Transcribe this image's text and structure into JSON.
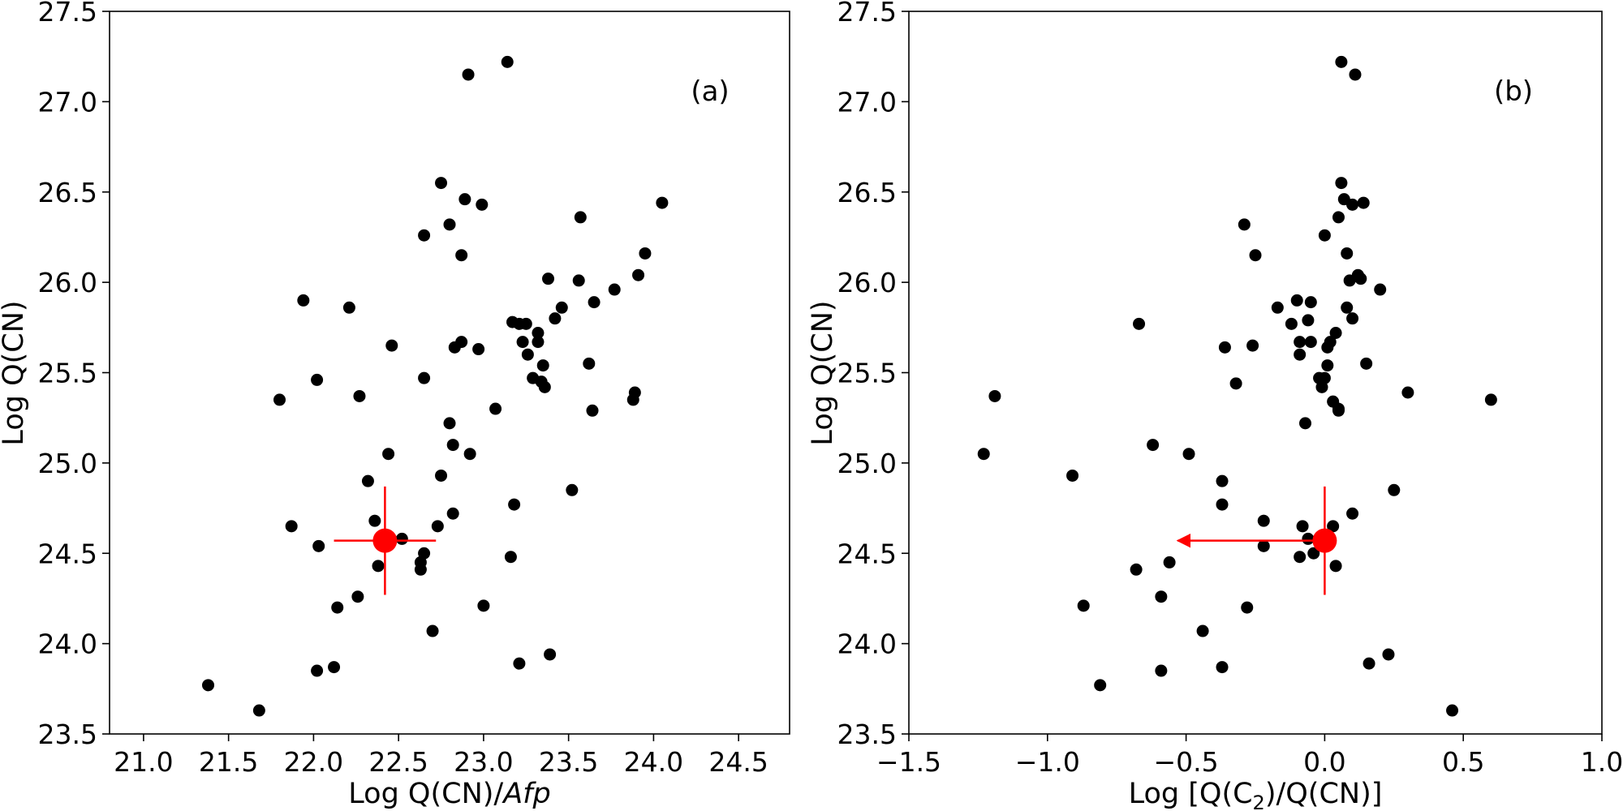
{
  "chart_data": [
    {
      "type": "scatter",
      "panel_label": "(a)",
      "xlabel": "Log Q(CN)/",
      "xlabel_italic": "Afp",
      "ylabel": "Log Q(CN)",
      "xlim": [
        20.8,
        24.8
      ],
      "ylim": [
        23.5,
        27.5
      ],
      "xticks": [
        "21.0",
        "21.5",
        "22.0",
        "22.5",
        "23.0",
        "23.5",
        "24.0",
        "24.5"
      ],
      "yticks": [
        "23.5",
        "24.0",
        "24.5",
        "25.0",
        "25.5",
        "26.0",
        "26.5",
        "27.0",
        "27.5"
      ],
      "grid": false,
      "legend": false,
      "point_color": "#000000",
      "highlight_color": "#ff0000",
      "points": [
        [
          21.38,
          23.77
        ],
        [
          21.68,
          23.63
        ],
        [
          21.8,
          25.35
        ],
        [
          21.87,
          24.65
        ],
        [
          21.94,
          25.9
        ],
        [
          22.02,
          25.46
        ],
        [
          22.03,
          24.54
        ],
        [
          22.02,
          23.85
        ],
        [
          22.12,
          23.87
        ],
        [
          22.14,
          24.2
        ],
        [
          22.21,
          25.86
        ],
        [
          22.26,
          24.26
        ],
        [
          22.27,
          25.37
        ],
        [
          22.32,
          24.9
        ],
        [
          22.36,
          24.68
        ],
        [
          22.38,
          24.43
        ],
        [
          22.44,
          25.05
        ],
        [
          22.46,
          25.65
        ],
        [
          22.52,
          24.58
        ],
        [
          22.63,
          24.45
        ],
        [
          22.63,
          24.41
        ],
        [
          22.65,
          24.5
        ],
        [
          22.65,
          25.47
        ],
        [
          22.65,
          26.26
        ],
        [
          22.7,
          24.07
        ],
        [
          22.73,
          24.65
        ],
        [
          22.75,
          24.93
        ],
        [
          22.75,
          26.55
        ],
        [
          22.8,
          26.32
        ],
        [
          22.8,
          25.22
        ],
        [
          22.82,
          24.72
        ],
        [
          22.82,
          25.1
        ],
        [
          22.83,
          25.64
        ],
        [
          22.87,
          25.67
        ],
        [
          22.87,
          26.15
        ],
        [
          22.89,
          26.46
        ],
        [
          22.91,
          27.15
        ],
        [
          22.92,
          25.05
        ],
        [
          22.97,
          25.63
        ],
        [
          22.99,
          26.43
        ],
        [
          23.0,
          24.21
        ],
        [
          23.07,
          25.3
        ],
        [
          23.14,
          27.22
        ],
        [
          23.16,
          24.48
        ],
        [
          23.17,
          25.78
        ],
        [
          23.18,
          24.77
        ],
        [
          23.21,
          25.77
        ],
        [
          23.21,
          23.89
        ],
        [
          23.23,
          25.67
        ],
        [
          23.25,
          25.77
        ],
        [
          23.26,
          25.6
        ],
        [
          23.29,
          25.47
        ],
        [
          23.32,
          25.72
        ],
        [
          23.32,
          25.67
        ],
        [
          23.34,
          25.45
        ],
        [
          23.35,
          25.54
        ],
        [
          23.36,
          25.42
        ],
        [
          23.38,
          26.02
        ],
        [
          23.39,
          23.94
        ],
        [
          23.42,
          25.8
        ],
        [
          23.46,
          25.86
        ],
        [
          23.52,
          24.85
        ],
        [
          23.56,
          26.01
        ],
        [
          23.57,
          26.36
        ],
        [
          23.62,
          25.55
        ],
        [
          23.64,
          25.29
        ],
        [
          23.65,
          25.89
        ],
        [
          23.77,
          25.96
        ],
        [
          23.88,
          25.35
        ],
        [
          23.89,
          25.39
        ],
        [
          23.91,
          26.04
        ],
        [
          23.95,
          26.16
        ],
        [
          24.05,
          26.44
        ]
      ],
      "highlight": {
        "x": 22.42,
        "y": 24.57,
        "xerr": [
          0.3,
          0.3
        ],
        "yerr": [
          0.3,
          0.3
        ],
        "arrow_x_to": null
      }
    },
    {
      "type": "scatter",
      "panel_label": "(b)",
      "xlabel": "Log [Q(C",
      "xlabel_sub": "2",
      "xlabel_tail": ")/Q(CN)]",
      "ylabel": "Log Q(CN)",
      "xlim": [
        -1.5,
        1.0
      ],
      "ylim": [
        23.5,
        27.5
      ],
      "xticks": [
        "−1.5",
        "−1.0",
        "−0.5",
        "0.0",
        "0.5",
        "1.0"
      ],
      "yticks": [
        "23.5",
        "24.0",
        "24.5",
        "25.0",
        "25.5",
        "26.0",
        "26.5",
        "27.0",
        "27.5"
      ],
      "grid": false,
      "legend": false,
      "point_color": "#000000",
      "highlight_color": "#ff0000",
      "points": [
        [
          -1.23,
          25.05
        ],
        [
          -1.19,
          25.37
        ],
        [
          -0.91,
          24.93
        ],
        [
          -0.87,
          24.21
        ],
        [
          -0.81,
          23.77
        ],
        [
          -0.68,
          24.41
        ],
        [
          -0.67,
          25.77
        ],
        [
          -0.62,
          25.1
        ],
        [
          -0.59,
          24.26
        ],
        [
          -0.59,
          23.85
        ],
        [
          -0.56,
          24.45
        ],
        [
          -0.49,
          25.05
        ],
        [
          -0.44,
          24.07
        ],
        [
          -0.37,
          24.9
        ],
        [
          -0.37,
          24.77
        ],
        [
          -0.37,
          23.87
        ],
        [
          -0.36,
          25.64
        ],
        [
          -0.32,
          25.44
        ],
        [
          -0.29,
          26.32
        ],
        [
          -0.28,
          24.2
        ],
        [
          -0.26,
          25.65
        ],
        [
          -0.25,
          26.15
        ],
        [
          -0.22,
          24.68
        ],
        [
          -0.22,
          24.54
        ],
        [
          -0.17,
          25.86
        ],
        [
          -0.12,
          25.77
        ],
        [
          -0.1,
          25.9
        ],
        [
          -0.09,
          25.6
        ],
        [
          -0.09,
          25.67
        ],
        [
          -0.09,
          24.48
        ],
        [
          -0.08,
          24.65
        ],
        [
          -0.07,
          25.22
        ],
        [
          -0.06,
          25.79
        ],
        [
          -0.06,
          24.58
        ],
        [
          -0.05,
          25.89
        ],
        [
          -0.05,
          25.67
        ],
        [
          -0.04,
          24.5
        ],
        [
          -0.02,
          25.47
        ],
        [
          -0.01,
          25.42
        ],
        [
          0.0,
          25.47
        ],
        [
          0.0,
          26.26
        ],
        [
          0.01,
          25.54
        ],
        [
          0.01,
          25.64
        ],
        [
          0.02,
          25.67
        ],
        [
          0.03,
          24.65
        ],
        [
          0.03,
          25.34
        ],
        [
          0.04,
          25.72
        ],
        [
          0.04,
          24.43
        ],
        [
          0.05,
          25.29
        ],
        [
          0.05,
          25.3
        ],
        [
          0.05,
          26.36
        ],
        [
          0.06,
          26.55
        ],
        [
          0.07,
          26.46
        ],
        [
          0.08,
          26.16
        ],
        [
          0.08,
          25.86
        ],
        [
          0.09,
          26.01
        ],
        [
          0.1,
          24.72
        ],
        [
          0.1,
          26.43
        ],
        [
          0.1,
          25.8
        ],
        [
          0.11,
          27.15
        ],
        [
          0.12,
          26.04
        ],
        [
          0.13,
          26.02
        ],
        [
          0.14,
          26.44
        ],
        [
          0.15,
          25.55
        ],
        [
          0.16,
          23.89
        ],
        [
          0.2,
          25.96
        ],
        [
          0.23,
          23.94
        ],
        [
          0.25,
          24.85
        ],
        [
          0.3,
          25.39
        ],
        [
          0.46,
          23.63
        ],
        [
          0.6,
          25.35
        ],
        [
          0.06,
          27.22
        ]
      ],
      "highlight": {
        "x": 0.0,
        "y": 24.57,
        "xerr": null,
        "yerr": [
          0.3,
          0.3
        ],
        "arrow_x_to": -0.53
      }
    }
  ]
}
